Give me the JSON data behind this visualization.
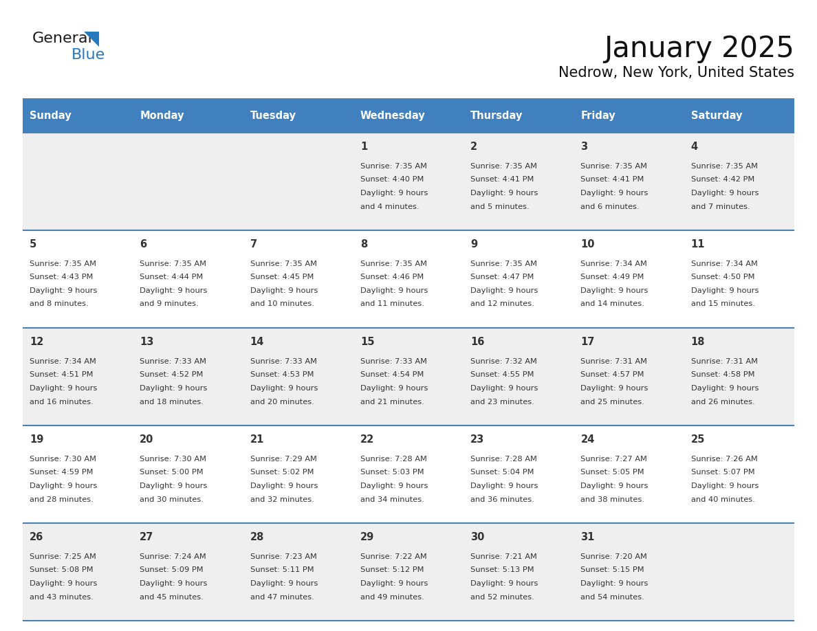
{
  "title": "January 2025",
  "subtitle": "Nedrow, New York, United States",
  "header_bg": "#4080bf",
  "header_text_color": "#ffffff",
  "days_of_week": [
    "Sunday",
    "Monday",
    "Tuesday",
    "Wednesday",
    "Thursday",
    "Friday",
    "Saturday"
  ],
  "border_color": "#4a7fb5",
  "odd_row_bg": "#efefef",
  "even_row_bg": "#ffffff",
  "cell_text_color": "#333333",
  "logo_general_color": "#1a1a1a",
  "logo_blue_color": "#2878be",
  "weeks": [
    [
      {
        "day": "",
        "sunrise": "",
        "sunset": "",
        "daylight_line1": "",
        "daylight_line2": ""
      },
      {
        "day": "",
        "sunrise": "",
        "sunset": "",
        "daylight_line1": "",
        "daylight_line2": ""
      },
      {
        "day": "",
        "sunrise": "",
        "sunset": "",
        "daylight_line1": "",
        "daylight_line2": ""
      },
      {
        "day": "1",
        "sunrise": "7:35 AM",
        "sunset": "4:40 PM",
        "daylight_line1": "Daylight: 9 hours",
        "daylight_line2": "and 4 minutes."
      },
      {
        "day": "2",
        "sunrise": "7:35 AM",
        "sunset": "4:41 PM",
        "daylight_line1": "Daylight: 9 hours",
        "daylight_line2": "and 5 minutes."
      },
      {
        "day": "3",
        "sunrise": "7:35 AM",
        "sunset": "4:41 PM",
        "daylight_line1": "Daylight: 9 hours",
        "daylight_line2": "and 6 minutes."
      },
      {
        "day": "4",
        "sunrise": "7:35 AM",
        "sunset": "4:42 PM",
        "daylight_line1": "Daylight: 9 hours",
        "daylight_line2": "and 7 minutes."
      }
    ],
    [
      {
        "day": "5",
        "sunrise": "7:35 AM",
        "sunset": "4:43 PM",
        "daylight_line1": "Daylight: 9 hours",
        "daylight_line2": "and 8 minutes."
      },
      {
        "day": "6",
        "sunrise": "7:35 AM",
        "sunset": "4:44 PM",
        "daylight_line1": "Daylight: 9 hours",
        "daylight_line2": "and 9 minutes."
      },
      {
        "day": "7",
        "sunrise": "7:35 AM",
        "sunset": "4:45 PM",
        "daylight_line1": "Daylight: 9 hours",
        "daylight_line2": "and 10 minutes."
      },
      {
        "day": "8",
        "sunrise": "7:35 AM",
        "sunset": "4:46 PM",
        "daylight_line1": "Daylight: 9 hours",
        "daylight_line2": "and 11 minutes."
      },
      {
        "day": "9",
        "sunrise": "7:35 AM",
        "sunset": "4:47 PM",
        "daylight_line1": "Daylight: 9 hours",
        "daylight_line2": "and 12 minutes."
      },
      {
        "day": "10",
        "sunrise": "7:34 AM",
        "sunset": "4:49 PM",
        "daylight_line1": "Daylight: 9 hours",
        "daylight_line2": "and 14 minutes."
      },
      {
        "day": "11",
        "sunrise": "7:34 AM",
        "sunset": "4:50 PM",
        "daylight_line1": "Daylight: 9 hours",
        "daylight_line2": "and 15 minutes."
      }
    ],
    [
      {
        "day": "12",
        "sunrise": "7:34 AM",
        "sunset": "4:51 PM",
        "daylight_line1": "Daylight: 9 hours",
        "daylight_line2": "and 16 minutes."
      },
      {
        "day": "13",
        "sunrise": "7:33 AM",
        "sunset": "4:52 PM",
        "daylight_line1": "Daylight: 9 hours",
        "daylight_line2": "and 18 minutes."
      },
      {
        "day": "14",
        "sunrise": "7:33 AM",
        "sunset": "4:53 PM",
        "daylight_line1": "Daylight: 9 hours",
        "daylight_line2": "and 20 minutes."
      },
      {
        "day": "15",
        "sunrise": "7:33 AM",
        "sunset": "4:54 PM",
        "daylight_line1": "Daylight: 9 hours",
        "daylight_line2": "and 21 minutes."
      },
      {
        "day": "16",
        "sunrise": "7:32 AM",
        "sunset": "4:55 PM",
        "daylight_line1": "Daylight: 9 hours",
        "daylight_line2": "and 23 minutes."
      },
      {
        "day": "17",
        "sunrise": "7:31 AM",
        "sunset": "4:57 PM",
        "daylight_line1": "Daylight: 9 hours",
        "daylight_line2": "and 25 minutes."
      },
      {
        "day": "18",
        "sunrise": "7:31 AM",
        "sunset": "4:58 PM",
        "daylight_line1": "Daylight: 9 hours",
        "daylight_line2": "and 26 minutes."
      }
    ],
    [
      {
        "day": "19",
        "sunrise": "7:30 AM",
        "sunset": "4:59 PM",
        "daylight_line1": "Daylight: 9 hours",
        "daylight_line2": "and 28 minutes."
      },
      {
        "day": "20",
        "sunrise": "7:30 AM",
        "sunset": "5:00 PM",
        "daylight_line1": "Daylight: 9 hours",
        "daylight_line2": "and 30 minutes."
      },
      {
        "day": "21",
        "sunrise": "7:29 AM",
        "sunset": "5:02 PM",
        "daylight_line1": "Daylight: 9 hours",
        "daylight_line2": "and 32 minutes."
      },
      {
        "day": "22",
        "sunrise": "7:28 AM",
        "sunset": "5:03 PM",
        "daylight_line1": "Daylight: 9 hours",
        "daylight_line2": "and 34 minutes."
      },
      {
        "day": "23",
        "sunrise": "7:28 AM",
        "sunset": "5:04 PM",
        "daylight_line1": "Daylight: 9 hours",
        "daylight_line2": "and 36 minutes."
      },
      {
        "day": "24",
        "sunrise": "7:27 AM",
        "sunset": "5:05 PM",
        "daylight_line1": "Daylight: 9 hours",
        "daylight_line2": "and 38 minutes."
      },
      {
        "day": "25",
        "sunrise": "7:26 AM",
        "sunset": "5:07 PM",
        "daylight_line1": "Daylight: 9 hours",
        "daylight_line2": "and 40 minutes."
      }
    ],
    [
      {
        "day": "26",
        "sunrise": "7:25 AM",
        "sunset": "5:08 PM",
        "daylight_line1": "Daylight: 9 hours",
        "daylight_line2": "and 43 minutes."
      },
      {
        "day": "27",
        "sunrise": "7:24 AM",
        "sunset": "5:09 PM",
        "daylight_line1": "Daylight: 9 hours",
        "daylight_line2": "and 45 minutes."
      },
      {
        "day": "28",
        "sunrise": "7:23 AM",
        "sunset": "5:11 PM",
        "daylight_line1": "Daylight: 9 hours",
        "daylight_line2": "and 47 minutes."
      },
      {
        "day": "29",
        "sunrise": "7:22 AM",
        "sunset": "5:12 PM",
        "daylight_line1": "Daylight: 9 hours",
        "daylight_line2": "and 49 minutes."
      },
      {
        "day": "30",
        "sunrise": "7:21 AM",
        "sunset": "5:13 PM",
        "daylight_line1": "Daylight: 9 hours",
        "daylight_line2": "and 52 minutes."
      },
      {
        "day": "31",
        "sunrise": "7:20 AM",
        "sunset": "5:15 PM",
        "daylight_line1": "Daylight: 9 hours",
        "daylight_line2": "and 54 minutes."
      },
      {
        "day": "",
        "sunrise": "",
        "sunset": "",
        "daylight_line1": "",
        "daylight_line2": ""
      }
    ]
  ]
}
